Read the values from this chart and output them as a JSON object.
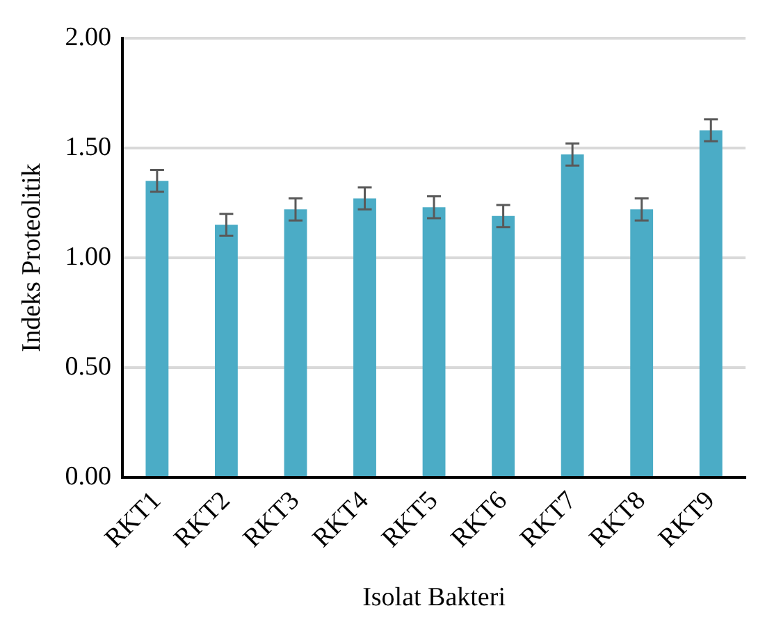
{
  "chart_data": {
    "type": "bar",
    "xlabel": "Isolat Bakteri",
    "ylabel": "Indeks Proteolitik",
    "categories": [
      "RKT1",
      "RKT2",
      "RKT3",
      "RKT4",
      "RKT5",
      "RKT6",
      "RKT7",
      "RKT8",
      "RKT9"
    ],
    "values": [
      1.35,
      1.15,
      1.22,
      1.27,
      1.23,
      1.19,
      1.47,
      1.22,
      1.58
    ],
    "errors": [
      0.05,
      0.05,
      0.05,
      0.05,
      0.05,
      0.05,
      0.05,
      0.05,
      0.05
    ],
    "color": "#4bacc6",
    "ylim": [
      0,
      2
    ],
    "yticks": [
      {
        "value": 0,
        "label": "0.00"
      },
      {
        "value": 0.5,
        "label": "0.50"
      },
      {
        "value": 1,
        "label": "1.00"
      },
      {
        "value": 1.5,
        "label": "1.50"
      },
      {
        "value": 2,
        "label": "2.00"
      }
    ],
    "grid": "y",
    "legend": false
  }
}
